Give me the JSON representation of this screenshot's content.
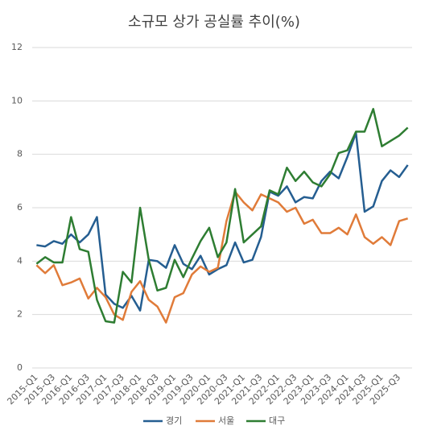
{
  "chart_data": {
    "type": "line",
    "title": "소규모 상가 공실률 추이(%)",
    "categories": [
      "2015-Q1",
      null,
      "2015-Q3",
      null,
      "2016-Q1",
      null,
      "2016-Q3",
      null,
      "2017-Q1",
      null,
      "2017-Q3",
      null,
      "2018-Q1",
      null,
      "2018-Q3",
      null,
      "2019-Q1",
      null,
      "2019-Q3",
      null,
      "2020-Q1",
      null,
      "2020-Q3",
      null,
      "2021-Q1",
      null,
      "2021-Q3",
      null,
      "2022-Q1",
      null,
      "2022-Q3",
      null,
      "2023-Q1",
      null,
      "2023-Q3",
      null,
      "2024-Q1",
      null,
      "2024-Q3",
      null,
      "2025-Q1",
      null,
      "2025-Q3",
      null
    ],
    "series": [
      {
        "name": "경기",
        "color": "#255e91",
        "values": [
          4.6,
          4.55,
          4.75,
          4.65,
          5.0,
          4.7,
          5.0,
          5.65,
          2.75,
          2.4,
          2.25,
          2.7,
          2.15,
          4.05,
          4.0,
          3.75,
          4.6,
          3.9,
          3.7,
          4.2,
          3.5,
          3.7,
          3.85,
          4.7,
          3.95,
          4.05,
          4.9,
          6.6,
          6.45,
          6.8,
          6.2,
          6.4,
          6.35,
          7.0,
          7.35,
          7.1,
          7.9,
          8.8,
          5.85,
          6.05,
          7.0,
          7.4,
          7.15,
          7.6
        ]
      },
      {
        "name": "서울",
        "color": "#e07b39",
        "values": [
          3.85,
          3.55,
          3.85,
          3.1,
          3.2,
          3.35,
          2.6,
          3.0,
          2.65,
          2.0,
          1.8,
          2.85,
          3.25,
          2.55,
          2.3,
          1.7,
          2.65,
          2.8,
          3.5,
          3.8,
          3.6,
          3.75,
          5.5,
          6.6,
          6.2,
          5.9,
          6.5,
          6.35,
          6.2,
          5.85,
          6.0,
          5.4,
          5.55,
          5.05,
          5.05,
          5.25,
          5.0,
          5.75,
          4.9,
          4.65,
          4.9,
          4.6,
          5.5,
          5.6
        ]
      },
      {
        "name": "대구",
        "color": "#2e7d32",
        "values": [
          3.9,
          4.15,
          3.95,
          3.95,
          5.65,
          4.45,
          4.35,
          2.55,
          1.75,
          1.7,
          3.6,
          3.2,
          6.0,
          4.05,
          2.9,
          3.0,
          4.05,
          3.4,
          4.1,
          4.75,
          5.25,
          4.15,
          4.7,
          6.7,
          4.7,
          5.0,
          5.3,
          6.65,
          6.5,
          7.5,
          7.0,
          7.35,
          6.95,
          6.8,
          7.25,
          8.05,
          8.15,
          8.85,
          8.85,
          9.7,
          8.3,
          8.5,
          8.7,
          9.0
        ]
      }
    ],
    "ylim": [
      0,
      12
    ],
    "yticks": [
      0,
      2,
      4,
      6,
      8,
      10,
      12
    ],
    "grid": true,
    "legend": "bottom"
  }
}
